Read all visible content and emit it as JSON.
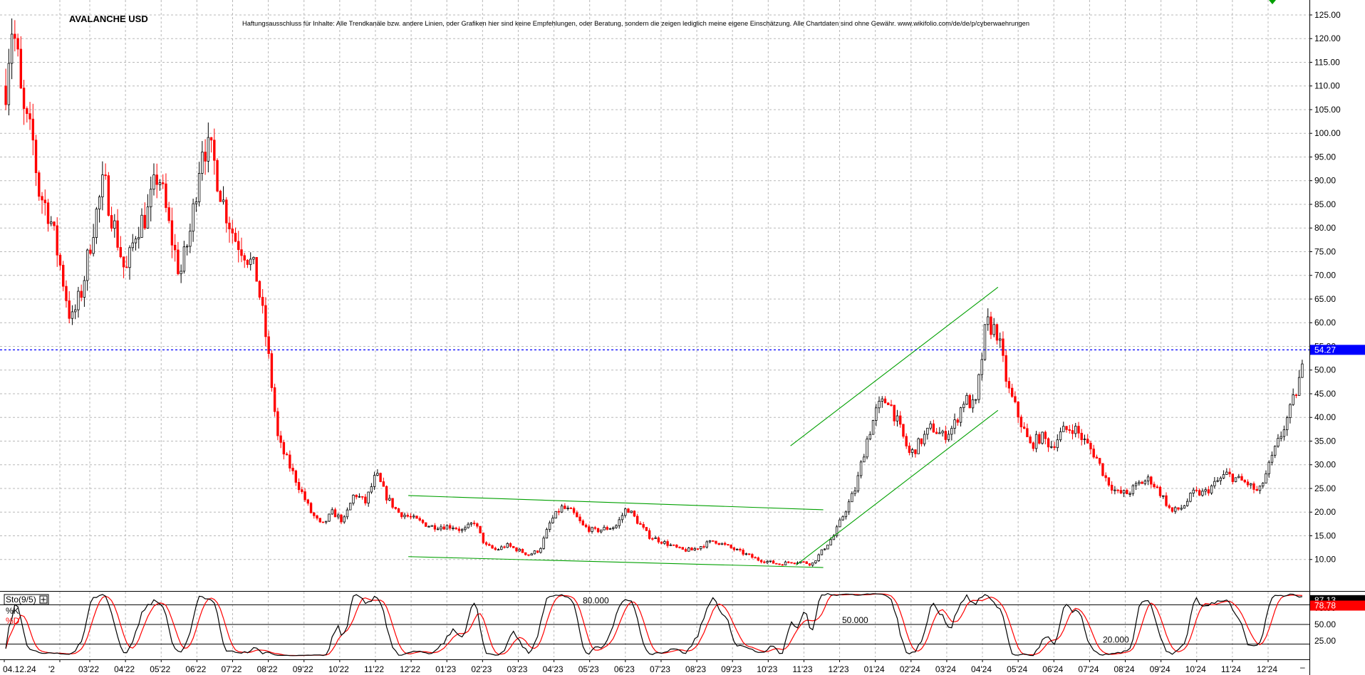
{
  "chart_data": {
    "type": "candlestick",
    "title": "AVALANCHE USD",
    "disclaimer": "Haftungsausschluss für Inhalte: Alle Trendkanäle bzw. andere Linien, oder Grafiken hier sind keine Empfehlungen, oder Beratung, sondern die zeigen lediglich meine eigene Einschätzung. Alle Chartdaten sind ohne Gewähr.  www.wikifolio.com/de/de/p/cyberwaehrungen",
    "y_ticks": [
      "125.00",
      "120.00",
      "115.00",
      "110.00",
      "105.00",
      "100.00",
      "95.00",
      "90.00",
      "85.00",
      "80.00",
      "75.00",
      "70.00",
      "65.00",
      "60.00",
      "55.00",
      "50.00",
      "45.00",
      "40.00",
      "35.00",
      "30.00",
      "25.00",
      "20.00",
      "15.00",
      "10.00"
    ],
    "ylim": [
      5.3,
      126.5
    ],
    "x_labels": [
      "04.12.24",
      "'2",
      "03'22",
      "04'22",
      "05'22",
      "06'22",
      "07'22",
      "08'22",
      "09'22",
      "10'22",
      "11'22",
      "12'22",
      "01'23",
      "02'23",
      "03'23",
      "04'23",
      "05'23",
      "06'23",
      "07'23",
      "08'23",
      "09'23",
      "10'23",
      "11'23",
      "12'23",
      "01'24",
      "02'24",
      "03'24",
      "04'24",
      "05'24",
      "06'24",
      "07'24",
      "08'24",
      "09'24",
      "10'24",
      "11'24",
      "12'24"
    ],
    "current_price": {
      "label": "54.27",
      "value": 54.27,
      "color": "#0000ff"
    },
    "price_path": [
      [
        0,
        110
      ],
      [
        1,
        123
      ],
      [
        2,
        118
      ],
      [
        3,
        105
      ],
      [
        5,
        98
      ],
      [
        6,
        88
      ],
      [
        8,
        83
      ],
      [
        10,
        72
      ],
      [
        12,
        60
      ],
      [
        14,
        67
      ],
      [
        16,
        80
      ],
      [
        18,
        90
      ],
      [
        20,
        80
      ],
      [
        22,
        70
      ],
      [
        24,
        80
      ],
      [
        26,
        83
      ],
      [
        28,
        92
      ],
      [
        30,
        80
      ],
      [
        32,
        70
      ],
      [
        34,
        80
      ],
      [
        36,
        98
      ],
      [
        38,
        95
      ],
      [
        40,
        85
      ],
      [
        42,
        78
      ],
      [
        44,
        75
      ],
      [
        46,
        70
      ],
      [
        47,
        63
      ],
      [
        48,
        55
      ],
      [
        50,
        35
      ],
      [
        52,
        30
      ],
      [
        54,
        25
      ],
      [
        56,
        20
      ],
      [
        58,
        17
      ],
      [
        60,
        20
      ],
      [
        62,
        18
      ],
      [
        64,
        24
      ],
      [
        66,
        22
      ],
      [
        68,
        28
      ],
      [
        70,
        23
      ],
      [
        72,
        20
      ],
      [
        74,
        19
      ],
      [
        76,
        18
      ],
      [
        78,
        17
      ],
      [
        80,
        17
      ],
      [
        82,
        17
      ],
      [
        84,
        16
      ],
      [
        86,
        18
      ],
      [
        88,
        13
      ],
      [
        90,
        12
      ],
      [
        92,
        13
      ],
      [
        94,
        12
      ],
      [
        96,
        11
      ],
      [
        98,
        12
      ],
      [
        100,
        18
      ],
      [
        102,
        21
      ],
      [
        104,
        20
      ],
      [
        106,
        17
      ],
      [
        108,
        16
      ],
      [
        110,
        16.5
      ],
      [
        112,
        17
      ],
      [
        114,
        21
      ],
      [
        116,
        18
      ],
      [
        118,
        15
      ],
      [
        120,
        14
      ],
      [
        122,
        13
      ],
      [
        124,
        12
      ],
      [
        126,
        12
      ],
      [
        128,
        13
      ],
      [
        130,
        14
      ],
      [
        132,
        13
      ],
      [
        134,
        12
      ],
      [
        136,
        11
      ],
      [
        138,
        10
      ],
      [
        140,
        9.5
      ],
      [
        142,
        9
      ],
      [
        144,
        9.5
      ],
      [
        146,
        9.5
      ],
      [
        148,
        9
      ],
      [
        150,
        12
      ],
      [
        152,
        15
      ],
      [
        154,
        20
      ],
      [
        156,
        25
      ],
      [
        158,
        35
      ],
      [
        160,
        42
      ],
      [
        162,
        44
      ],
      [
        164,
        38
      ],
      [
        166,
        32
      ],
      [
        168,
        35
      ],
      [
        170,
        38
      ],
      [
        172,
        36
      ],
      [
        174,
        38
      ],
      [
        176,
        44
      ],
      [
        178,
        42
      ],
      [
        180,
        60
      ],
      [
        182,
        58
      ],
      [
        184,
        46
      ],
      [
        186,
        40
      ],
      [
        188,
        34
      ],
      [
        190,
        36
      ],
      [
        192,
        34
      ],
      [
        194,
        37
      ],
      [
        196,
        38
      ],
      [
        198,
        35
      ],
      [
        200,
        32
      ],
      [
        202,
        27
      ],
      [
        204,
        24
      ],
      [
        206,
        24
      ],
      [
        208,
        26
      ],
      [
        210,
        27
      ],
      [
        212,
        24
      ],
      [
        214,
        20
      ],
      [
        216,
        21
      ],
      [
        218,
        24
      ],
      [
        220,
        24
      ],
      [
        222,
        26
      ],
      [
        224,
        28
      ],
      [
        226,
        27
      ],
      [
        228,
        26
      ],
      [
        230,
        24
      ],
      [
        232,
        30
      ],
      [
        234,
        36
      ],
      [
        236,
        42
      ],
      [
        238,
        50
      ]
    ],
    "trendlines": [
      {
        "color": "#00a000",
        "points": [
          [
            74,
            23.5
          ],
          [
            150,
            20.5
          ]
        ]
      },
      {
        "color": "#00a000",
        "points": [
          [
            74,
            10.6
          ],
          [
            150,
            8.3
          ]
        ]
      },
      {
        "color": "#00a000",
        "points": [
          [
            144,
            34
          ],
          [
            182,
            67.5
          ]
        ]
      },
      {
        "color": "#00a000",
        "points": [
          [
            145,
            8.8
          ],
          [
            182,
            41.5
          ]
        ]
      }
    ],
    "indicator": {
      "name": "Sto(9/5)",
      "k_label": "%K",
      "d_label": "%D",
      "k_color": "#000000",
      "d_color": "#ff0000",
      "levels": [
        80,
        50,
        20
      ],
      "level_labels": [
        "80.000",
        "50.000",
        "20.000"
      ],
      "y_ticks": [
        "75.00",
        "50.00",
        "25.00"
      ],
      "k_value": "87.13",
      "d_value": "78.78",
      "ylim": [
        0,
        100
      ]
    }
  }
}
